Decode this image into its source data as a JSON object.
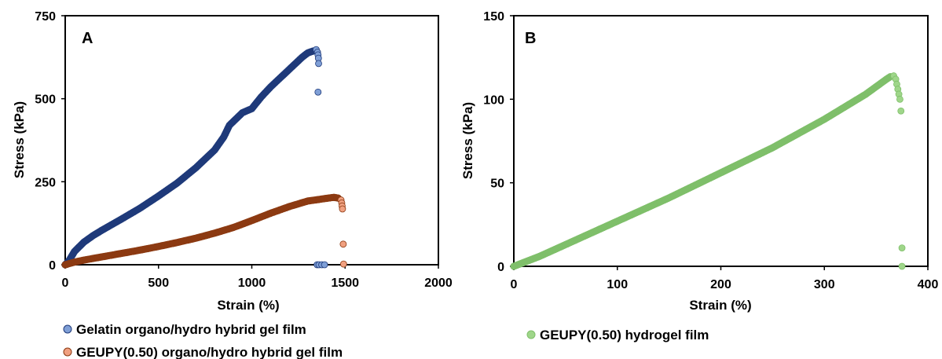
{
  "chart_data": [
    {
      "type": "scatter",
      "panel_label": "A",
      "xlabel": "Strain (%)",
      "ylabel": "Stress (kPa)",
      "xlim": [
        0,
        2000
      ],
      "ylim": [
        0,
        750
      ],
      "xticks": [
        0,
        500,
        1000,
        1500,
        2000
      ],
      "yticks": [
        0,
        250,
        500,
        750
      ],
      "xtick_labels": [
        "0",
        "500",
        "1000",
        "1500",
        "2000"
      ],
      "ytick_labels": [
        "0",
        "250",
        "500",
        "750"
      ],
      "grid": false,
      "legend_position": "bottom-left",
      "series": [
        {
          "name": "Gelatin organo/hydro hybrid gel film",
          "color": "#1f3a7a",
          "tail_color": "#7f9fd6",
          "curve": [
            [
              0,
              0
            ],
            [
              20,
              12
            ],
            [
              50,
              40
            ],
            [
              100,
              68
            ],
            [
              150,
              88
            ],
            [
              200,
              105
            ],
            [
              300,
              137
            ],
            [
              400,
              170
            ],
            [
              500,
              207
            ],
            [
              600,
              246
            ],
            [
              700,
              292
            ],
            [
              800,
              345
            ],
            [
              850,
              385
            ],
            [
              880,
              420
            ],
            [
              950,
              458
            ],
            [
              1000,
              470
            ],
            [
              1050,
              505
            ],
            [
              1100,
              535
            ],
            [
              1200,
              588
            ],
            [
              1270,
              625
            ],
            [
              1300,
              638
            ],
            [
              1335,
              645
            ]
          ],
          "tail_points": [
            [
              1345,
              648
            ],
            [
              1352,
              640
            ],
            [
              1355,
              632
            ],
            [
              1357,
              622
            ],
            [
              1358,
              606
            ],
            [
              1355,
              520
            ],
            [
              1350,
              0
            ],
            [
              1360,
              -2
            ],
            [
              1375,
              -2
            ],
            [
              1390,
              -3
            ]
          ]
        },
        {
          "name": "GEUPY(0.50) organo/hydro hybrid gel film",
          "color": "#8c3a12",
          "tail_color": "#f0a080",
          "curve": [
            [
              0,
              0
            ],
            [
              50,
              8
            ],
            [
              100,
              14
            ],
            [
              200,
              24
            ],
            [
              300,
              34
            ],
            [
              400,
              44
            ],
            [
              500,
              55
            ],
            [
              600,
              67
            ],
            [
              700,
              80
            ],
            [
              800,
              95
            ],
            [
              900,
              112
            ],
            [
              1000,
              133
            ],
            [
              1100,
              155
            ],
            [
              1200,
              175
            ],
            [
              1300,
              192
            ],
            [
              1340,
              195
            ],
            [
              1400,
              200
            ],
            [
              1440,
              203
            ],
            [
              1470,
              200
            ]
          ],
          "tail_points": [
            [
              1478,
              195
            ],
            [
              1482,
              186
            ],
            [
              1484,
              177
            ],
            [
              1486,
              168
            ],
            [
              1490,
              62
            ],
            [
              1492,
              2
            ]
          ]
        }
      ]
    },
    {
      "type": "scatter",
      "panel_label": "B",
      "xlabel": "Strain (%)",
      "ylabel": "Stress (kPa)",
      "xlim": [
        0,
        400
      ],
      "ylim": [
        0,
        150
      ],
      "xticks": [
        0,
        100,
        200,
        300,
        400
      ],
      "yticks": [
        0,
        50,
        100,
        150
      ],
      "xtick_labels": [
        "0",
        "100",
        "200",
        "300",
        "400"
      ],
      "ytick_labels": [
        "0",
        "50",
        "100",
        "150"
      ],
      "grid": false,
      "legend_position": "bottom-center",
      "series": [
        {
          "name": "GEUPY(0.50) hydrogel film",
          "color": "#7fbf6a",
          "tail_color": "#9fd68a",
          "curve": [
            [
              0,
              0
            ],
            [
              25,
              6
            ],
            [
              50,
              13
            ],
            [
              100,
              27
            ],
            [
              150,
              41
            ],
            [
              200,
              56
            ],
            [
              250,
              71
            ],
            [
              300,
              88
            ],
            [
              340,
              103
            ],
            [
              360,
              112
            ],
            [
              365,
              114
            ]
          ],
          "tail_points": [
            [
              367,
              114
            ],
            [
              369,
              112
            ],
            [
              370,
              109
            ],
            [
              371,
              106
            ],
            [
              372,
              103
            ],
            [
              373,
              100
            ],
            [
              374,
              93
            ],
            [
              375,
              11
            ],
            [
              375,
              0
            ]
          ]
        }
      ]
    }
  ]
}
